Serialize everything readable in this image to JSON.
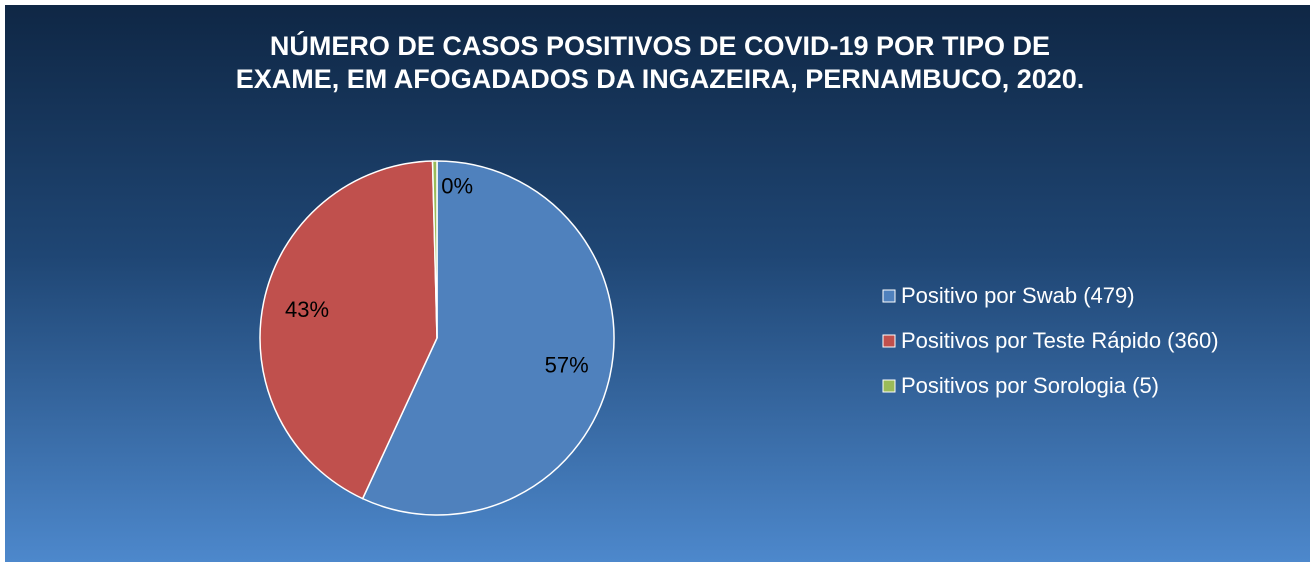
{
  "chart_data": {
    "type": "pie",
    "title": [
      "NÚMERO DE CASOS POSITIVOS DE COVID-19 POR TIPO DE",
      "EXAME, EM AFOGADADOS DA INGAZEIRA, PERNAMBUCO, 2020."
    ],
    "categories": [
      "Positivo por Swab (479)",
      "Positivos por Teste Rápido (360)",
      "Positivos por Sorologia (5)"
    ],
    "values": [
      56.9,
      42.7,
      0.4
    ],
    "value_labels": [
      "57%",
      "43%",
      "0%"
    ],
    "colors": [
      "#4f81bd",
      "#c0504d",
      "#9bbb59"
    ],
    "legend": "right"
  }
}
